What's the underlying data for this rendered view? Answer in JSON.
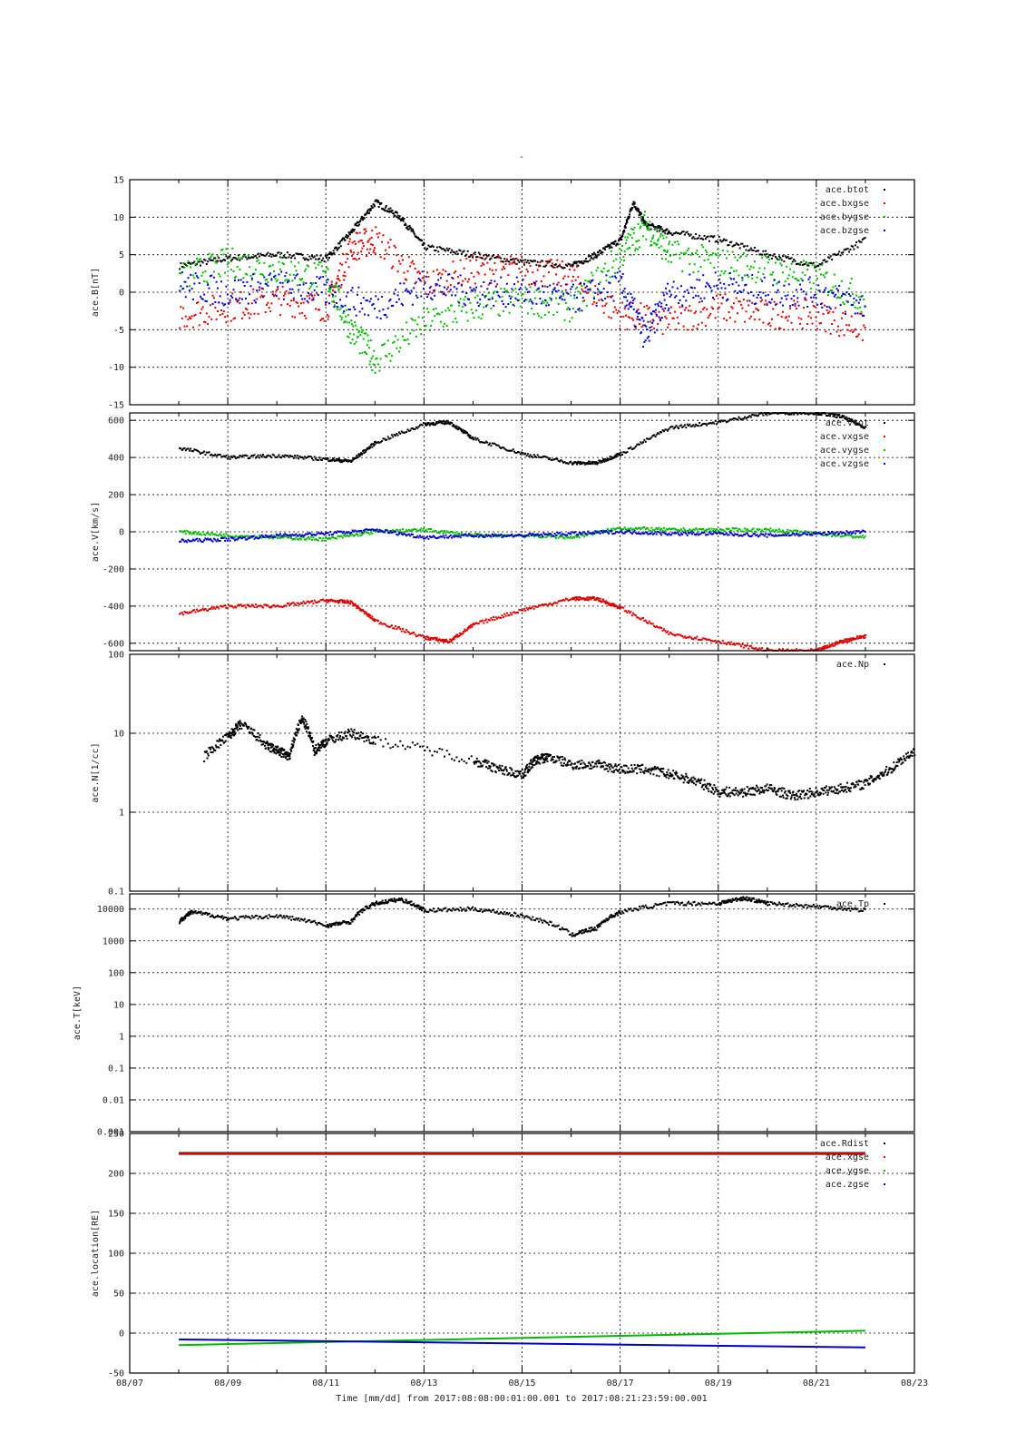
{
  "figure": {
    "title": "-",
    "footer": "Time [mm/dd]  from 2017:08:08:00:01:00.001  to  2017:08:21:23:59:00.001",
    "x_tick_labels": [
      "08/07",
      "08/09",
      "08/11",
      "08/13",
      "08/15",
      "08/17",
      "08/19",
      "08/21",
      "08/23"
    ]
  },
  "chart_data": [
    {
      "type": "scatter",
      "id": "mag",
      "ylabel": "ace.B[nT]",
      "xlabel": "",
      "xlim": [
        "2017-08-07",
        "2017-08-23"
      ],
      "ylim": [
        -15,
        15
      ],
      "yscale": "linear",
      "yticks": [
        -15,
        -10,
        -5,
        0,
        5,
        10,
        15
      ],
      "grid": true,
      "legend_position": "top-right",
      "series": [
        {
          "name": "ace.btot",
          "color": "#000000",
          "x": [
            "2017-08-08",
            "2017-08-09",
            "2017-08-10",
            "2017-08-11",
            "2017-08-11T12",
            "2017-08-12",
            "2017-08-12T12",
            "2017-08-13",
            "2017-08-14",
            "2017-08-15",
            "2017-08-16",
            "2017-08-16T12",
            "2017-08-17",
            "2017-08-17T06",
            "2017-08-17T12",
            "2017-08-18",
            "2017-08-19",
            "2017-08-20",
            "2017-08-21",
            "2017-08-22"
          ],
          "values": [
            3.5,
            4.5,
            5,
            4.5,
            8,
            12,
            10,
            6,
            5,
            4,
            3.5,
            5,
            7,
            12,
            9,
            8,
            7,
            5,
            3.5,
            7
          ]
        },
        {
          "name": "ace.bxgse",
          "color": "#dd0000",
          "x": [
            "2017-08-08",
            "2017-08-09",
            "2017-08-10",
            "2017-08-11",
            "2017-08-11T12",
            "2017-08-12",
            "2017-08-13",
            "2017-08-14",
            "2017-08-15",
            "2017-08-16",
            "2017-08-17",
            "2017-08-18",
            "2017-08-19",
            "2017-08-20",
            "2017-08-21",
            "2017-08-22"
          ],
          "values": [
            -3,
            -2,
            -1,
            -2,
            6,
            7,
            1,
            3,
            3,
            2,
            -3,
            -4,
            -2,
            -3,
            -3,
            -5
          ]
        },
        {
          "name": "ace.bygse",
          "color": "#00bb00",
          "x": [
            "2017-08-08",
            "2017-08-09",
            "2017-08-10",
            "2017-08-11",
            "2017-08-11T12",
            "2017-08-12",
            "2017-08-13",
            "2017-08-14",
            "2017-08-15",
            "2017-08-16",
            "2017-08-17",
            "2017-08-17T12",
            "2017-08-18",
            "2017-08-19",
            "2017-08-20",
            "2017-08-21",
            "2017-08-22"
          ],
          "values": [
            2,
            4,
            3,
            2,
            -5,
            -9,
            -4,
            -2,
            -1,
            -2,
            5,
            9,
            5,
            4,
            3,
            2,
            -1
          ]
        },
        {
          "name": "ace.bzgse",
          "color": "#0000cc",
          "x": [
            "2017-08-08",
            "2017-08-09",
            "2017-08-10",
            "2017-08-11",
            "2017-08-12",
            "2017-08-13",
            "2017-08-14",
            "2017-08-15",
            "2017-08-16",
            "2017-08-17",
            "2017-08-17T12",
            "2017-08-18",
            "2017-08-19",
            "2017-08-20",
            "2017-08-21",
            "2017-08-22"
          ],
          "values": [
            1,
            0,
            1,
            0,
            -2,
            1,
            0,
            0,
            -1,
            1,
            -6,
            0,
            1,
            0,
            0,
            -2
          ]
        }
      ]
    },
    {
      "type": "scatter",
      "id": "velocity",
      "ylabel": "ace.V[km/s]",
      "xlabel": "",
      "xlim": [
        "2017-08-07",
        "2017-08-23"
      ],
      "ylim": [
        -640,
        640
      ],
      "yscale": "linear",
      "yticks": [
        -600,
        -400,
        -200,
        0,
        200,
        400,
        600
      ],
      "grid": true,
      "legend_position": "top-right",
      "series": [
        {
          "name": "ace.vtot",
          "color": "#000000",
          "x": [
            "2017-08-08",
            "2017-08-09",
            "2017-08-10",
            "2017-08-11",
            "2017-08-11T12",
            "2017-08-12",
            "2017-08-13",
            "2017-08-13T12",
            "2017-08-14",
            "2017-08-15",
            "2017-08-16",
            "2017-08-16T12",
            "2017-08-17",
            "2017-08-18",
            "2017-08-19",
            "2017-08-20",
            "2017-08-21",
            "2017-08-21T12",
            "2017-08-22"
          ],
          "values": [
            450,
            400,
            410,
            390,
            380,
            480,
            580,
            590,
            500,
            420,
            370,
            370,
            420,
            560,
            590,
            640,
            640,
            620,
            560
          ]
        },
        {
          "name": "ace.vxgse",
          "color": "#dd0000",
          "x": [
            "2017-08-08",
            "2017-08-09",
            "2017-08-10",
            "2017-08-11",
            "2017-08-11T12",
            "2017-08-12",
            "2017-08-13",
            "2017-08-13T12",
            "2017-08-14",
            "2017-08-15",
            "2017-08-16",
            "2017-08-16T12",
            "2017-08-17",
            "2017-08-18",
            "2017-08-19",
            "2017-08-20",
            "2017-08-21",
            "2017-08-21T12",
            "2017-08-22"
          ],
          "values": [
            -440,
            -400,
            -400,
            -370,
            -380,
            -480,
            -570,
            -590,
            -500,
            -420,
            -360,
            -360,
            -410,
            -550,
            -590,
            -640,
            -640,
            -590,
            -560
          ]
        },
        {
          "name": "ace.vygse",
          "color": "#00bb00",
          "x": [
            "2017-08-08",
            "2017-08-09",
            "2017-08-10",
            "2017-08-11",
            "2017-08-12",
            "2017-08-13",
            "2017-08-14",
            "2017-08-15",
            "2017-08-16",
            "2017-08-17",
            "2017-08-18",
            "2017-08-19",
            "2017-08-20",
            "2017-08-21",
            "2017-08-22"
          ],
          "values": [
            0,
            -20,
            -30,
            -40,
            0,
            10,
            -20,
            -20,
            -30,
            20,
            10,
            10,
            10,
            -10,
            -30
          ]
        },
        {
          "name": "ace.vzgse",
          "color": "#0000cc",
          "x": [
            "2017-08-08",
            "2017-08-09",
            "2017-08-10",
            "2017-08-11",
            "2017-08-12",
            "2017-08-13",
            "2017-08-14",
            "2017-08-15",
            "2017-08-16",
            "2017-08-17",
            "2017-08-18",
            "2017-08-19",
            "2017-08-20",
            "2017-08-21",
            "2017-08-22"
          ],
          "values": [
            -50,
            -40,
            -20,
            -10,
            10,
            -30,
            -20,
            -20,
            -10,
            0,
            -10,
            -10,
            -20,
            -10,
            0
          ]
        }
      ]
    },
    {
      "type": "scatter",
      "id": "density",
      "ylabel": "ace.N[1/cc]",
      "xlabel": "",
      "xlim": [
        "2017-08-07",
        "2017-08-23"
      ],
      "ylim": [
        0.1,
        100
      ],
      "yscale": "log",
      "yticks": [
        0.1,
        1,
        10,
        100
      ],
      "grid": true,
      "legend_position": "top-right",
      "series": [
        {
          "name": "ace.Np",
          "color": "#000000",
          "x": [
            "2017-08-08T12",
            "2017-08-09",
            "2017-08-09T06",
            "2017-08-09T18",
            "2017-08-10",
            "2017-08-10T06",
            "2017-08-10T12",
            "2017-08-10T18",
            "2017-08-11",
            "2017-08-11T12",
            "2017-08-12",
            "2017-08-14",
            "2017-08-14T12",
            "2017-08-15",
            "2017-08-15T06",
            "2017-08-15T12",
            "2017-08-16",
            "2017-08-16T12",
            "2017-08-17",
            "2017-08-17T12",
            "2017-08-18",
            "2017-08-18T12",
            "2017-08-19",
            "2017-08-19T12",
            "2017-08-20",
            "2017-08-20T12",
            "2017-08-21",
            "2017-08-21T12",
            "2017-08-22",
            "2017-08-22T12",
            "2017-08-23"
          ],
          "values": [
            5,
            9,
            13,
            7,
            6,
            5,
            15,
            6,
            8,
            10,
            8,
            4.5,
            3.5,
            3,
            4.5,
            5,
            4,
            4,
            3.5,
            3.5,
            3,
            2.5,
            1.8,
            1.8,
            2,
            1.6,
            1.8,
            2,
            2.3,
            3.5,
            6
          ]
        }
      ]
    },
    {
      "type": "scatter",
      "id": "temperature",
      "ylabel": "ace.T[keV]",
      "xlabel": "",
      "xlim": [
        "2017-08-07",
        "2017-08-23"
      ],
      "ylim": [
        0.001,
        30000
      ],
      "yscale": "log",
      "yticks": [
        0.001,
        0.01,
        0.1,
        1,
        10,
        100,
        1000,
        10000
      ],
      "grid": true,
      "legend_position": "top-right",
      "series": [
        {
          "name": "ace.Tp",
          "color": "#000000",
          "x": [
            "2017-08-08",
            "2017-08-08T06",
            "2017-08-09",
            "2017-08-10",
            "2017-08-11",
            "2017-08-11T12",
            "2017-08-12",
            "2017-08-12T12",
            "2017-08-13",
            "2017-08-14",
            "2017-08-15",
            "2017-08-16",
            "2017-08-16T12",
            "2017-08-17",
            "2017-08-18",
            "2017-08-19",
            "2017-08-19T12",
            "2017-08-20",
            "2017-08-21",
            "2017-08-22"
          ],
          "values": [
            4000,
            8000,
            5000,
            6000,
            3000,
            4000,
            15000,
            20000,
            9000,
            10000,
            6000,
            1500,
            2500,
            8000,
            15000,
            15000,
            22000,
            15000,
            12000,
            9000
          ]
        }
      ]
    },
    {
      "type": "line",
      "id": "location",
      "ylabel": "ace.location[RE]",
      "xlabel": "",
      "xlim": [
        "2017-08-07",
        "2017-08-23"
      ],
      "ylim": [
        -50,
        250
      ],
      "yscale": "linear",
      "yticks": [
        -50,
        0,
        50,
        100,
        150,
        200,
        250
      ],
      "grid": true,
      "legend_position": "top-right",
      "series": [
        {
          "name": "ace.Rdist",
          "color": "#000000",
          "x": [
            "2017-08-08",
            "2017-08-22"
          ],
          "values": [
            225,
            225
          ]
        },
        {
          "name": "ace.xgse",
          "color": "#dd0000",
          "x": [
            "2017-08-08",
            "2017-08-22"
          ],
          "values": [
            225,
            225
          ]
        },
        {
          "name": "ace.ygse",
          "color": "#00bb00",
          "x": [
            "2017-08-08",
            "2017-08-22"
          ],
          "values": [
            -15,
            3
          ]
        },
        {
          "name": "ace.zgse",
          "color": "#0000cc",
          "x": [
            "2017-08-08",
            "2017-08-22"
          ],
          "values": [
            -8,
            -18
          ]
        }
      ]
    }
  ]
}
